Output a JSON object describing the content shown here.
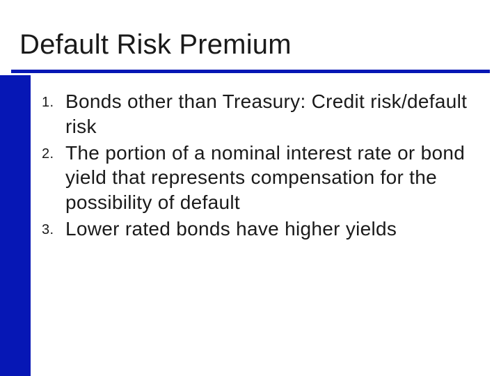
{
  "slide": {
    "title": "Default Risk Premium",
    "accent_color": "#0617b5",
    "background_color": "#ffffff",
    "text_color": "#1a1a1a",
    "title_fontsize": 40,
    "body_fontsize": 28,
    "number_fontsize": 20,
    "items": [
      {
        "text": "Bonds other than Treasury: Credit risk/default risk"
      },
      {
        "text": "The portion of a nominal interest rate or bond yield that represents compensation for the possibility of default"
      },
      {
        "text": "Lower rated bonds have higher yields"
      }
    ]
  }
}
